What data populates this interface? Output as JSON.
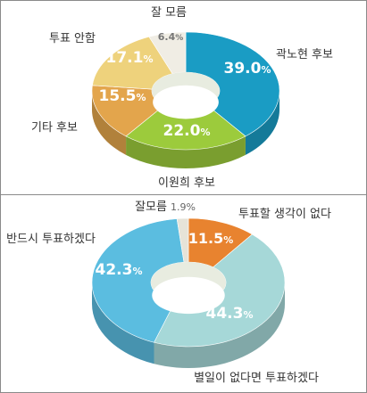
{
  "chart_data": [
    {
      "type": "pie",
      "style": "3d-donut",
      "unit": "%",
      "slices": [
        {
          "label": "곽노현 후보",
          "value": 39.0,
          "display": "39.0%",
          "color": "#1a9cc4"
        },
        {
          "label": "이원희 후보",
          "value": 22.0,
          "display": "22.0%",
          "color": "#9ccb3c"
        },
        {
          "label": "기타 후보",
          "value": 15.5,
          "display": "15.5%",
          "color": "#e3a54c"
        },
        {
          "label": "투표 안함",
          "value": 17.1,
          "display": "17.1%",
          "color": "#eed27c"
        },
        {
          "label": "잘 모름",
          "value": 6.4,
          "display": "6.4%",
          "color": "#f0ede4"
        }
      ]
    },
    {
      "type": "pie",
      "style": "3d-donut",
      "unit": "%",
      "slices": [
        {
          "label": "투표할 생각이 없다",
          "value": 11.5,
          "display": "11.5%",
          "color": "#e8832f"
        },
        {
          "label": "별일이 없다면 투표하겠다",
          "value": 44.3,
          "display": "44.3%",
          "color": "#a6d8d8"
        },
        {
          "label": "반드시 투표하겠다",
          "value": 42.3,
          "display": "42.3%",
          "color": "#5bbde0"
        },
        {
          "label": "잘모름",
          "value": 1.9,
          "display": "1.9%",
          "color": "#e6e3d8"
        }
      ]
    }
  ]
}
